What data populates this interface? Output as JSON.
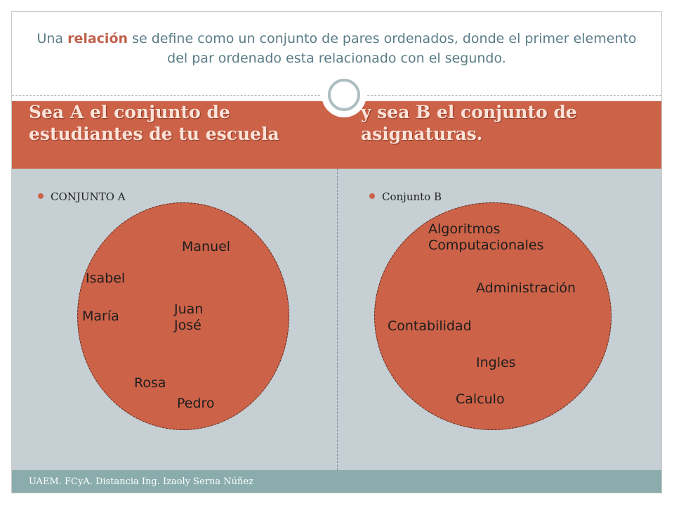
{
  "intro": {
    "before": "Una ",
    "keyword": "relación",
    "after": "  se define como un conjunto de pares ordenados, donde el primer elemento del par ordenado esta relacionado con el segundo."
  },
  "header": {
    "left": "Sea A el conjunto de estudiantes de tu escuela",
    "right": "y sea B el conjunto de asignaturas."
  },
  "set_a": {
    "title": "CONJUNTO A",
    "members": [
      "Manuel",
      "Isabel",
      "María",
      "Juan\nJosé",
      "Rosa",
      "Pedro"
    ]
  },
  "set_b": {
    "title": "Conjunto B",
    "members": [
      "Algoritmos\nComputacionales",
      "Administración",
      "Contabilidad",
      "Ingles",
      "Calculo"
    ]
  },
  "footer": {
    "text": "UAEM. FCyA. Distancia Ing. Izaoly Serna Núñez"
  },
  "colors": {
    "accent": "#cc6248",
    "body_bg": "#c5cfd4",
    "footer_bg": "#8aacac",
    "intro_text": "#5a7c87"
  }
}
